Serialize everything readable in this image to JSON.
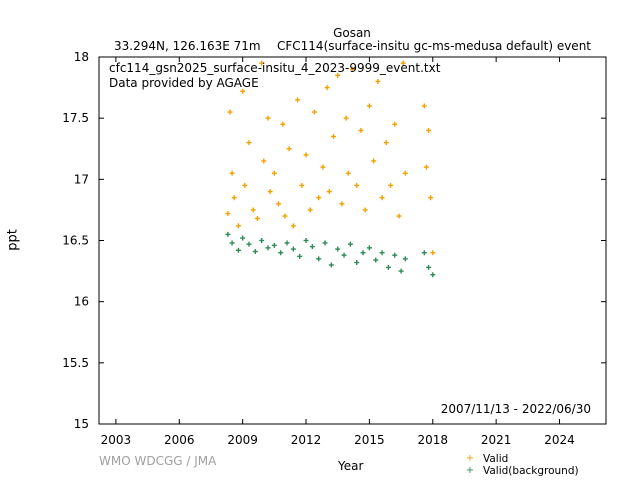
{
  "header": {
    "site": "Gosan",
    "location": "33.294N, 126.163E 71m",
    "dataset": "CFC114(surface-insitu gc-ms-medusa default) event"
  },
  "annotation": {
    "file": "cfc114_gsn2025_surface-insitu_4_2023-9999_event.txt",
    "provider": "Data provided by AGAGE",
    "period": "2007/11/13 - 2022/06/30"
  },
  "footer": {
    "credit": "WMO WDCGG / JMA"
  },
  "colors": {
    "valid": "#f5a000",
    "background": "#2e8b57"
  },
  "chart_data": {
    "type": "scatter",
    "xlabel": "Year",
    "ylabel": "ppt",
    "xlim": [
      2002.2,
      2026.2
    ],
    "ylim": [
      15,
      18
    ],
    "xticks": [
      2003,
      2006,
      2009,
      2012,
      2015,
      2018,
      2021,
      2024
    ],
    "yticks": [
      15,
      15.5,
      16,
      16.5,
      17,
      17.5,
      18
    ],
    "legend": "bottom-right",
    "grid": false,
    "series": [
      {
        "name": "Valid",
        "color": "#f5a000",
        "marker": "plus",
        "points": [
          [
            2008.3,
            16.72
          ],
          [
            2008.4,
            17.55
          ],
          [
            2008.5,
            17.05
          ],
          [
            2008.6,
            16.85
          ],
          [
            2008.8,
            16.62
          ],
          [
            2009.0,
            17.72
          ],
          [
            2009.1,
            16.95
          ],
          [
            2009.3,
            17.3
          ],
          [
            2009.5,
            16.75
          ],
          [
            2009.7,
            16.68
          ],
          [
            2009.9,
            17.95
          ],
          [
            2010.0,
            17.15
          ],
          [
            2010.2,
            17.5
          ],
          [
            2010.3,
            16.9
          ],
          [
            2010.5,
            17.05
          ],
          [
            2010.7,
            16.8
          ],
          [
            2010.9,
            17.45
          ],
          [
            2011.0,
            16.7
          ],
          [
            2011.2,
            17.25
          ],
          [
            2011.4,
            16.62
          ],
          [
            2011.6,
            17.65
          ],
          [
            2011.8,
            16.95
          ],
          [
            2012.0,
            17.2
          ],
          [
            2012.2,
            16.75
          ],
          [
            2012.4,
            17.55
          ],
          [
            2012.6,
            16.85
          ],
          [
            2012.8,
            17.1
          ],
          [
            2013.0,
            17.75
          ],
          [
            2013.1,
            16.9
          ],
          [
            2013.3,
            17.35
          ],
          [
            2013.5,
            17.85
          ],
          [
            2013.7,
            16.8
          ],
          [
            2013.9,
            17.5
          ],
          [
            2014.0,
            17.05
          ],
          [
            2014.2,
            17.9
          ],
          [
            2014.4,
            16.95
          ],
          [
            2014.6,
            17.4
          ],
          [
            2014.8,
            16.75
          ],
          [
            2015.0,
            17.6
          ],
          [
            2015.2,
            17.15
          ],
          [
            2015.4,
            17.8
          ],
          [
            2015.6,
            16.85
          ],
          [
            2015.8,
            17.3
          ],
          [
            2016.0,
            16.95
          ],
          [
            2016.2,
            17.45
          ],
          [
            2016.4,
            16.7
          ],
          [
            2016.6,
            17.95
          ],
          [
            2016.7,
            17.05
          ],
          [
            2017.6,
            17.6
          ],
          [
            2017.7,
            17.1
          ],
          [
            2017.8,
            17.4
          ],
          [
            2017.9,
            16.85
          ],
          [
            2018.0,
            16.4
          ]
        ]
      },
      {
        "name": "Valid(background)",
        "color": "#2e8b57",
        "marker": "plus",
        "points": [
          [
            2008.3,
            16.55
          ],
          [
            2008.5,
            16.48
          ],
          [
            2008.8,
            16.42
          ],
          [
            2009.0,
            16.52
          ],
          [
            2009.3,
            16.47
          ],
          [
            2009.6,
            16.41
          ],
          [
            2009.9,
            16.5
          ],
          [
            2010.2,
            16.44
          ],
          [
            2010.5,
            16.46
          ],
          [
            2010.8,
            16.4
          ],
          [
            2011.1,
            16.48
          ],
          [
            2011.4,
            16.43
          ],
          [
            2011.7,
            16.37
          ],
          [
            2012.0,
            16.5
          ],
          [
            2012.3,
            16.45
          ],
          [
            2012.6,
            16.35
          ],
          [
            2012.9,
            16.48
          ],
          [
            2013.2,
            16.3
          ],
          [
            2013.5,
            16.43
          ],
          [
            2013.8,
            16.38
          ],
          [
            2014.1,
            16.47
          ],
          [
            2014.4,
            16.32
          ],
          [
            2014.7,
            16.4
          ],
          [
            2015.0,
            16.44
          ],
          [
            2015.3,
            16.34
          ],
          [
            2015.6,
            16.4
          ],
          [
            2015.9,
            16.28
          ],
          [
            2016.2,
            16.38
          ],
          [
            2016.5,
            16.25
          ],
          [
            2016.7,
            16.35
          ],
          [
            2017.6,
            16.4
          ],
          [
            2017.8,
            16.28
          ],
          [
            2018.0,
            16.22
          ]
        ]
      }
    ]
  }
}
